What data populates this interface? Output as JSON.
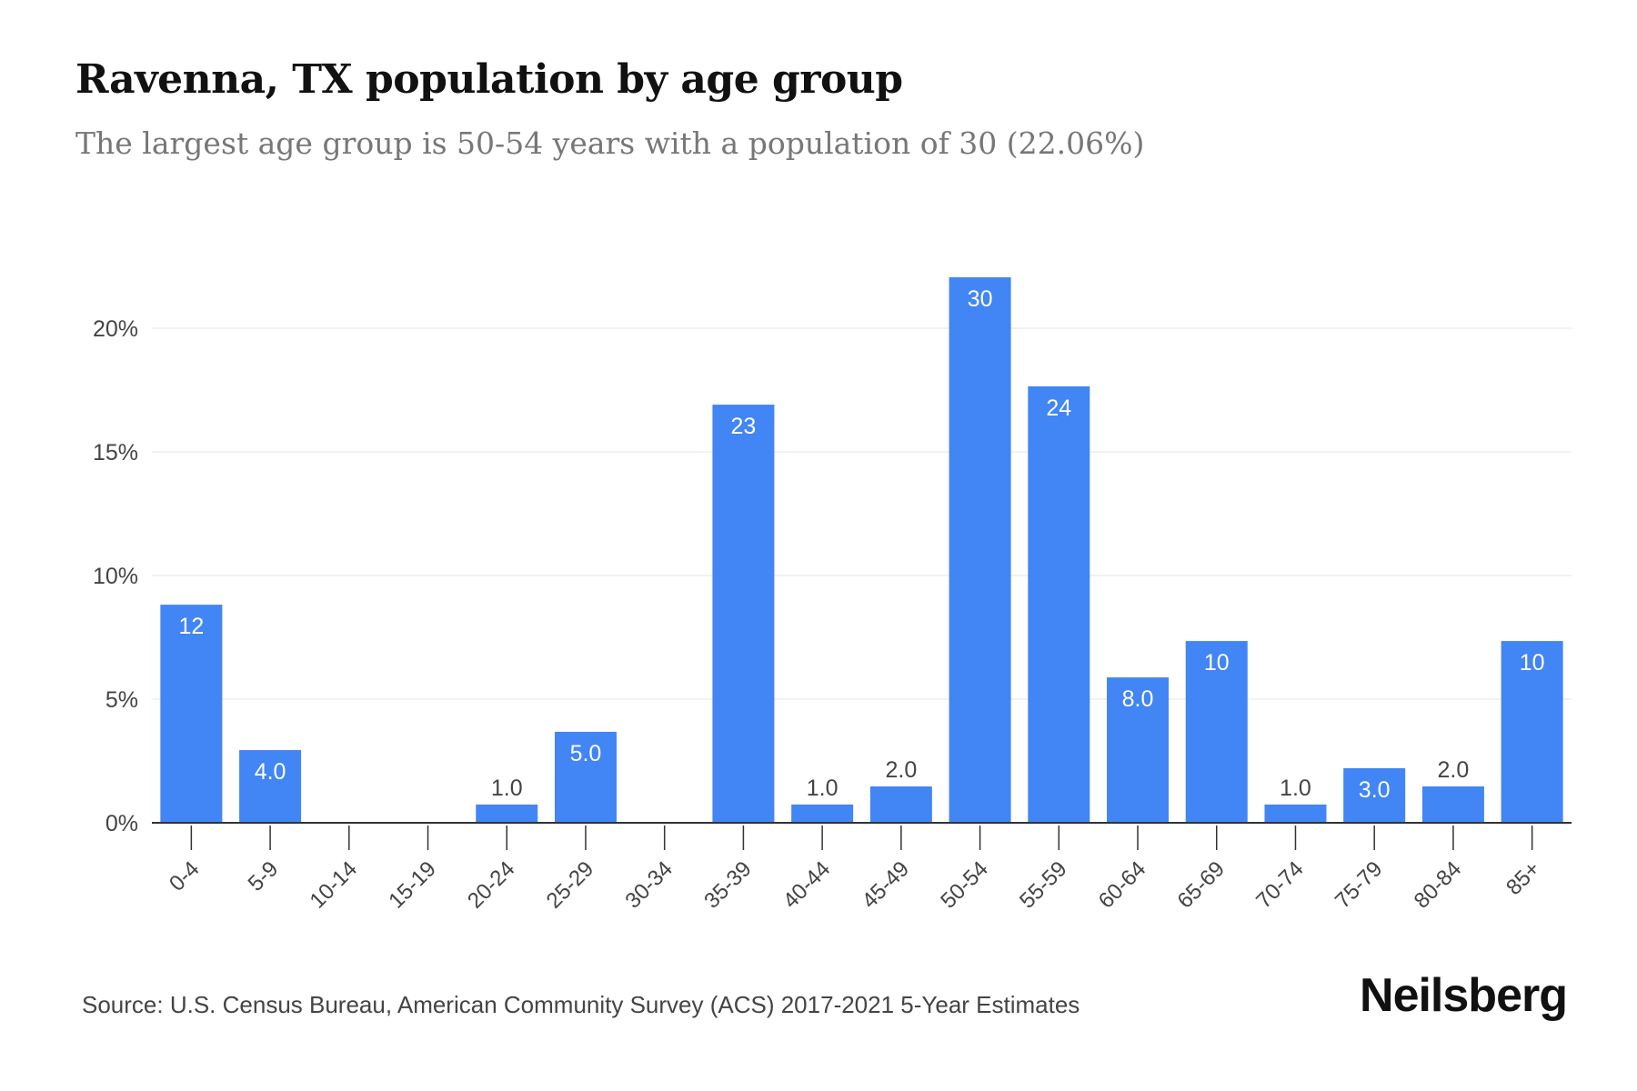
{
  "title": "Ravenna, TX population by age group",
  "subtitle": "The largest age group is 50-54 years with a population of 30 (22.06%)",
  "source": "Source: U.S. Census Bureau, American Community Survey (ACS) 2017-2021 5-Year Estimates",
  "brand": "Neilsberg",
  "colors": {
    "bar": "#4285f4",
    "grid": "#eeeeee",
    "axis": "#333333",
    "text": "#444444"
  },
  "chart_data": {
    "type": "bar",
    "categories": [
      "0-4",
      "5-9",
      "10-14",
      "15-19",
      "20-24",
      "25-29",
      "30-34",
      "35-39",
      "40-44",
      "45-49",
      "50-54",
      "55-59",
      "60-64",
      "65-69",
      "70-74",
      "75-79",
      "80-84",
      "85+"
    ],
    "values": [
      8.82,
      2.94,
      0,
      0,
      0.74,
      3.68,
      0,
      16.91,
      0.74,
      1.47,
      22.06,
      17.65,
      5.88,
      7.35,
      0.74,
      2.21,
      1.47,
      7.35
    ],
    "data_labels": [
      "12",
      "4.0",
      "",
      "",
      "1.0",
      "5.0",
      "",
      "23",
      "1.0",
      "2.0",
      "30",
      "24",
      "8.0",
      "10",
      "1.0",
      "3.0",
      "2.0",
      "10"
    ],
    "yticks": [
      "0%",
      "5%",
      "10%",
      "15%",
      "20%"
    ],
    "ytick_values": [
      0,
      5,
      10,
      15,
      20
    ],
    "ylim": [
      0,
      22.06
    ],
    "grid": true
  }
}
